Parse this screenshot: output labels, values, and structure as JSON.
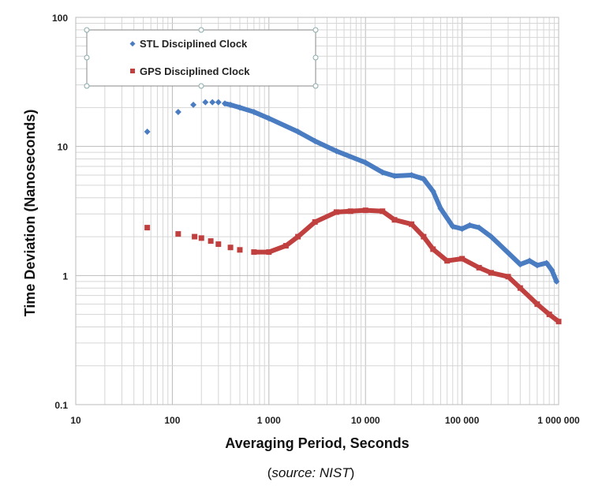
{
  "chart_data": {
    "type": "scatter",
    "xlabel": "Averaging Period, Seconds",
    "ylabel": "Time Deviation (Nanoseconds)",
    "x_scale": "log",
    "y_scale": "log",
    "xlim": [
      10,
      1000000
    ],
    "ylim": [
      0.1,
      100
    ],
    "grid": true,
    "legend_position": "top-left",
    "x_ticks": [
      "10",
      "100",
      "1 000",
      "10 000",
      "100 000",
      "1 000 000"
    ],
    "y_ticks": [
      "100",
      "10",
      "1",
      "0.1"
    ],
    "series": [
      {
        "name": "STL Disciplined Clock",
        "color": "#4a7cc2",
        "marker": "diamond",
        "x": [
          55,
          115,
          165,
          220,
          260,
          300,
          350,
          400,
          500,
          700,
          1000,
          2000,
          3000,
          5000,
          10000,
          15000,
          20000,
          30000,
          40000,
          50000,
          60000,
          80000,
          100000,
          120000,
          150000,
          200000,
          300000,
          400000,
          500000,
          600000,
          750000,
          850000,
          950000
        ],
        "y": [
          13,
          18.5,
          21,
          22,
          22,
          22,
          21.5,
          21,
          20,
          18.5,
          16.5,
          13,
          11,
          9.2,
          7.5,
          6.3,
          5.9,
          6.0,
          5.6,
          4.5,
          3.3,
          2.4,
          2.3,
          2.45,
          2.35,
          2.0,
          1.5,
          1.22,
          1.3,
          1.2,
          1.25,
          1.1,
          0.9
        ]
      },
      {
        "name": "GPS Disciplined Clock",
        "color": "#c0403f",
        "marker": "square",
        "x": [
          55,
          115,
          170,
          200,
          250,
          300,
          400,
          500,
          700,
          1000,
          1500,
          2000,
          3000,
          5000,
          7000,
          10000,
          15000,
          20000,
          30000,
          40000,
          50000,
          70000,
          100000,
          150000,
          200000,
          300000,
          400000,
          600000,
          800000,
          1000000
        ],
        "y": [
          2.35,
          2.1,
          2.0,
          1.95,
          1.85,
          1.75,
          1.65,
          1.58,
          1.52,
          1.52,
          1.7,
          2.0,
          2.6,
          3.1,
          3.15,
          3.2,
          3.15,
          2.7,
          2.5,
          2.0,
          1.6,
          1.3,
          1.35,
          1.15,
          1.05,
          0.98,
          0.8,
          0.6,
          0.5,
          0.44
        ]
      }
    ]
  },
  "caption": {
    "open": "(",
    "italic": "source: NIST",
    "close": ")"
  }
}
